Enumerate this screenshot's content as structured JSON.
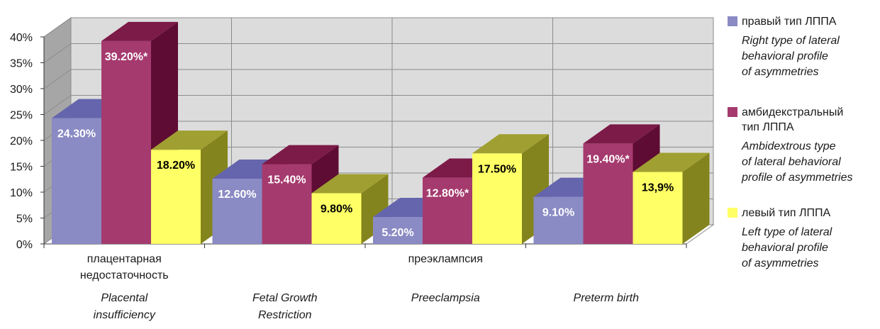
{
  "chart_data": {
    "type": "bar",
    "categories": [
      {
        "ru": "плацентарная недостаточность",
        "ru_lines": [
          "плацентарная",
          "недостаточность"
        ],
        "en_lines": [
          "Placental",
          "insufficiency"
        ]
      },
      {
        "ru": "",
        "ru_lines": [],
        "en_lines": [
          "Fetal Growth",
          "Restriction"
        ]
      },
      {
        "ru": "преэклампсия",
        "ru_lines": [
          "преэклампсия"
        ],
        "en_lines": [
          "Preeclampsia"
        ]
      },
      {
        "ru": "",
        "ru_lines": [],
        "en_lines": [
          "Preterm birth"
        ]
      }
    ],
    "series": [
      {
        "name_ru_lines": [
          "правый тип ЛППА"
        ],
        "name_en_lines": [
          "Right type of lateral",
          "behavioral profile",
          "of asymmetries"
        ],
        "values": [
          24.3,
          12.6,
          5.2,
          9.1
        ],
        "labels": [
          "24.30%",
          "12.60%",
          "5.20%",
          "9.10%"
        ]
      },
      {
        "name_ru_lines": [
          "амбидекстральный",
          "тип ЛППА"
        ],
        "name_en_lines": [
          "Ambidextrous type",
          "of lateral behavioral",
          "profile of asymmetries"
        ],
        "values": [
          39.2,
          15.4,
          12.8,
          19.4
        ],
        "labels": [
          "39.20%*",
          "15.40%",
          "12.80%*",
          "19.40%*"
        ]
      },
      {
        "name_ru_lines": [
          "левый тип ЛППА"
        ],
        "name_en_lines": [
          "Left type of lateral",
          "behavioral profile",
          "of asymmetries"
        ],
        "values": [
          18.2,
          9.8,
          17.5,
          13.9
        ],
        "labels": [
          "18.20%",
          "9.80%",
          "17.50%",
          "13,9%"
        ]
      }
    ],
    "y_ticks": [
      "0%",
      "5%",
      "10%",
      "15%",
      "20%",
      "25%",
      "30%",
      "35%",
      "40%"
    ],
    "ylim": [
      0,
      40
    ],
    "grid": true,
    "legend_position": "right",
    "colors": {
      "series": [
        {
          "front": "#8a8ac4",
          "top": "#6565ad",
          "side": "#4e4e97",
          "label": "#ffffff"
        },
        {
          "front": "#a53a6e",
          "top": "#7c1a48",
          "side": "#5e0c33",
          "label": "#ffffff"
        },
        {
          "front": "#ffff66",
          "top": "#a0a032",
          "side": "#84841e",
          "label": "#000000"
        }
      ],
      "back_wall": "#dcdcdc",
      "left_wall": "#a6a6a6",
      "floor": "#ffffff",
      "gridline": "#8c8c8c"
    }
  }
}
